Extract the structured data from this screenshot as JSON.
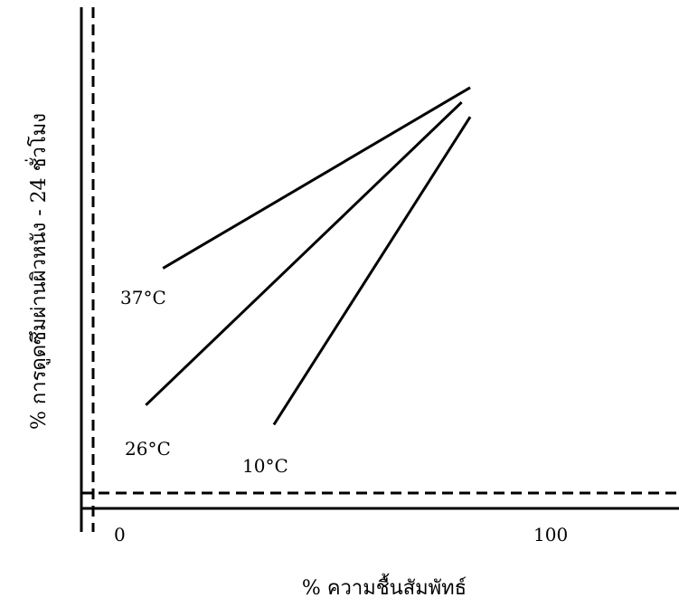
{
  "chart_data": {
    "type": "line",
    "title": "",
    "xlabel": "% ความชื้นสัมพัทธ์",
    "ylabel": "% การดูดซึมผ่านผิวหนัง - 24 ชั่วโมง",
    "x_ticks": [
      "0",
      "100"
    ],
    "xlim": [
      0,
      100
    ],
    "series": [
      {
        "name": "37°C",
        "x": [
          10,
          82
        ],
        "y": [
          46,
          83
        ]
      },
      {
        "name": "26°C",
        "x": [
          6,
          80
        ],
        "y": [
          18,
          80
        ]
      },
      {
        "name": "10°C",
        "x": [
          36,
          82
        ],
        "y": [
          14,
          77
        ]
      }
    ],
    "grid": false
  }
}
